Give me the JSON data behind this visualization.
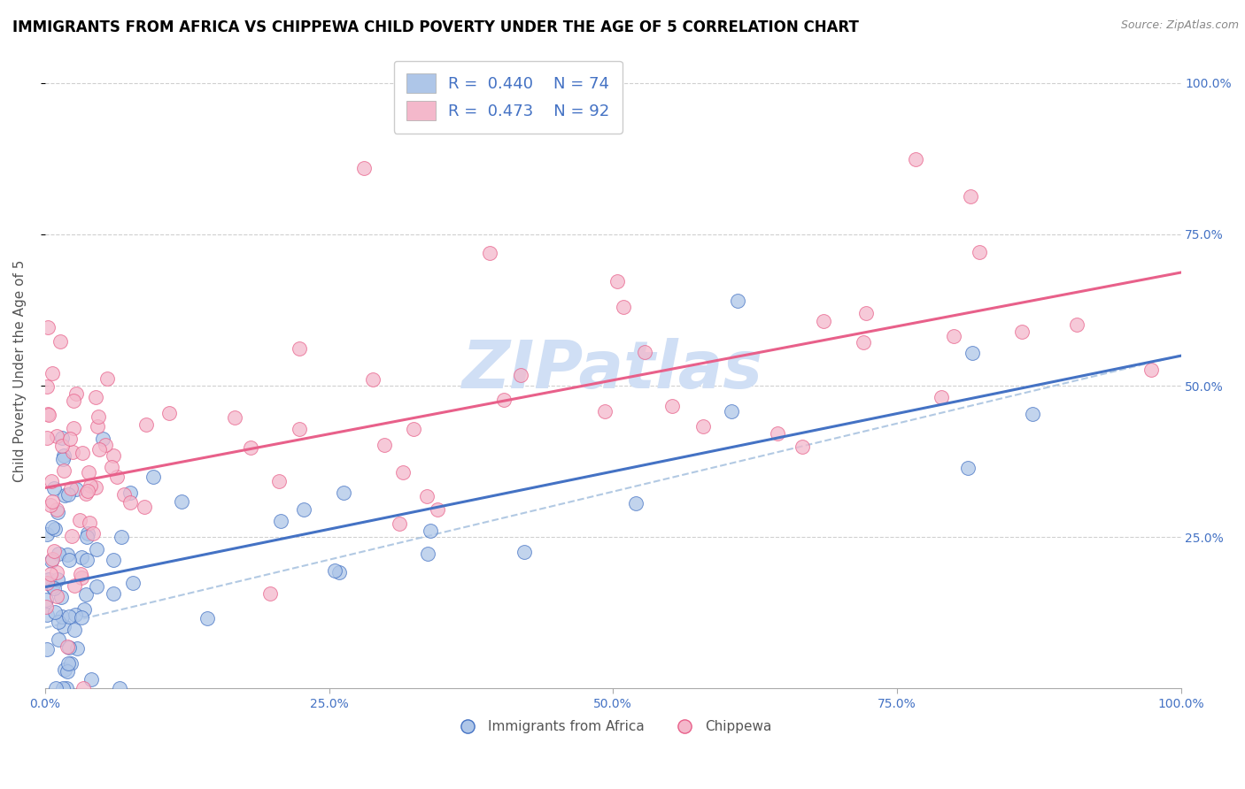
{
  "title": "IMMIGRANTS FROM AFRICA VS CHIPPEWA CHILD POVERTY UNDER THE AGE OF 5 CORRELATION CHART",
  "source": "Source: ZipAtlas.com",
  "ylabel": "Child Poverty Under the Age of 5",
  "color_blue": "#aec6e8",
  "color_pink": "#f4b8cb",
  "line_blue": "#4472c4",
  "line_pink": "#e8608a",
  "line_gray_dashed": "#aac4e0",
  "watermark": "ZIPatlas",
  "watermark_color": "#d0dff5",
  "title_fontsize": 12,
  "axis_label_fontsize": 11,
  "tick_fontsize": 10,
  "legend_fontsize": 13
}
